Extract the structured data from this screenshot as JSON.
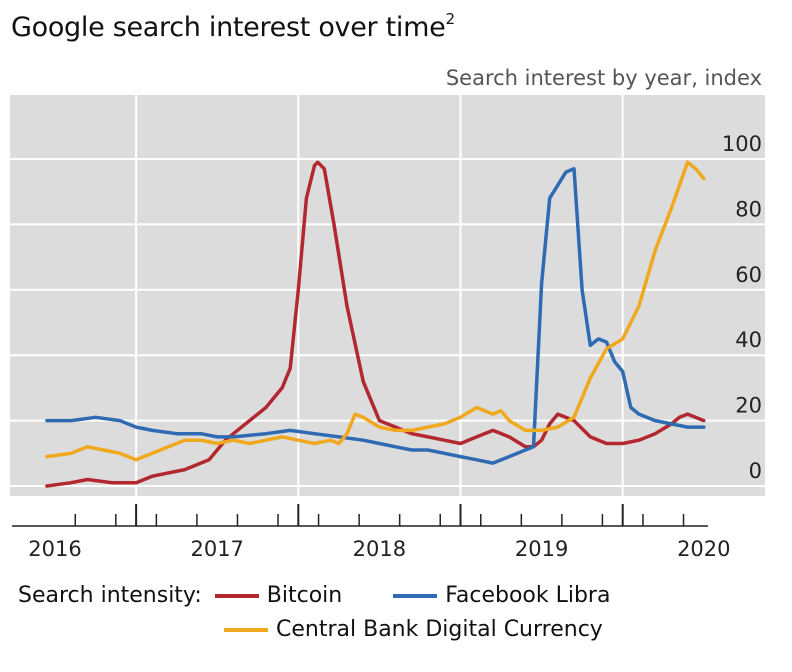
{
  "header": {
    "title": "Google search interest over time",
    "title_note": "2",
    "subtitle": "Search interest by year, index"
  },
  "legend": {
    "heading": "Search intensity:",
    "items": [
      {
        "label": "Bitcoin",
        "color": "#b2282e"
      },
      {
        "label": "Facebook Libra",
        "color": "#2f6bb3"
      },
      {
        "label": "Central Bank Digital Currency",
        "color": "#f0a81e"
      }
    ]
  },
  "chart_data": {
    "type": "line",
    "ylabel": "Search interest by year, index",
    "ylim": [
      0,
      100
    ],
    "yticks": [
      "0",
      "20",
      "40",
      "60",
      "80",
      "100"
    ],
    "xlim": [
      2015.95,
      2020.4
    ],
    "xticks": [
      "2016",
      "2017",
      "2018",
      "2019",
      "2020"
    ],
    "grid": true,
    "background": "#dcdcdc",
    "series": [
      {
        "name": "Bitcoin",
        "color": "#b2282e",
        "x": [
          2015.95,
          2016.1,
          2016.2,
          2016.35,
          2016.5,
          2016.6,
          2016.8,
          2016.95,
          2017.05,
          2017.2,
          2017.3,
          2017.4,
          2017.45,
          2017.5,
          2017.55,
          2017.6,
          2017.62,
          2017.66,
          2017.72,
          2017.8,
          2017.9,
          2018.0,
          2018.1,
          2018.2,
          2018.3,
          2018.4,
          2018.5,
          2018.6,
          2018.7,
          2018.8,
          2018.9,
          2018.95,
          2019.0,
          2019.05,
          2019.1,
          2019.2,
          2019.3,
          2019.4,
          2019.5,
          2019.6,
          2019.7,
          2019.8,
          2019.85,
          2019.9,
          2020.0
        ],
        "y": [
          0,
          1,
          2,
          1,
          1,
          3,
          5,
          8,
          14,
          20,
          24,
          30,
          36,
          60,
          88,
          98,
          99,
          97,
          80,
          55,
          32,
          20,
          18,
          16,
          15,
          14,
          13,
          15,
          17,
          15,
          12,
          12,
          14,
          19,
          22,
          20,
          15,
          13,
          13,
          14,
          16,
          19,
          21,
          22,
          20
        ]
      },
      {
        "name": "Facebook Libra",
        "color": "#2f6bb3",
        "x": [
          2015.95,
          2016.1,
          2016.25,
          2016.4,
          2016.5,
          2016.6,
          2016.75,
          2016.9,
          2017.0,
          2017.1,
          2017.3,
          2017.45,
          2017.6,
          2017.75,
          2017.9,
          2018.0,
          2018.1,
          2018.2,
          2018.3,
          2018.4,
          2018.5,
          2018.6,
          2018.7,
          2018.8,
          2018.9,
          2018.95,
          2019.0,
          2019.05,
          2019.1,
          2019.15,
          2019.2,
          2019.25,
          2019.3,
          2019.35,
          2019.4,
          2019.45,
          2019.5,
          2019.55,
          2019.6,
          2019.7,
          2019.8,
          2019.9,
          2020.0
        ],
        "y": [
          20,
          20,
          21,
          20,
          18,
          17,
          16,
          16,
          15,
          15,
          16,
          17,
          16,
          15,
          14,
          13,
          12,
          11,
          11,
          10,
          9,
          8,
          7,
          9,
          11,
          12,
          62,
          88,
          92,
          96,
          97,
          60,
          43,
          45,
          44,
          38,
          35,
          24,
          22,
          20,
          19,
          18,
          18
        ]
      },
      {
        "name": "Central Bank Digital Currency",
        "color": "#f0a81e",
        "x": [
          2015.95,
          2016.1,
          2016.2,
          2016.3,
          2016.4,
          2016.5,
          2016.6,
          2016.7,
          2016.8,
          2016.9,
          2017.0,
          2017.1,
          2017.2,
          2017.3,
          2017.4,
          2017.5,
          2017.6,
          2017.7,
          2017.75,
          2017.8,
          2017.85,
          2017.9,
          2018.0,
          2018.1,
          2018.2,
          2018.3,
          2018.4,
          2018.5,
          2018.6,
          2018.7,
          2018.75,
          2018.8,
          2018.9,
          2019.0,
          2019.1,
          2019.2,
          2019.3,
          2019.4,
          2019.5,
          2019.6,
          2019.7,
          2019.8,
          2019.85,
          2019.9,
          2019.95,
          2020.0
        ],
        "y": [
          9,
          10,
          12,
          11,
          10,
          8,
          10,
          12,
          14,
          14,
          13,
          14,
          13,
          14,
          15,
          14,
          13,
          14,
          13,
          16,
          22,
          21,
          18,
          17,
          17,
          18,
          19,
          21,
          24,
          22,
          23,
          20,
          17,
          17,
          18,
          21,
          33,
          42,
          45,
          55,
          72,
          85,
          92,
          99,
          97,
          94
        ]
      }
    ]
  }
}
